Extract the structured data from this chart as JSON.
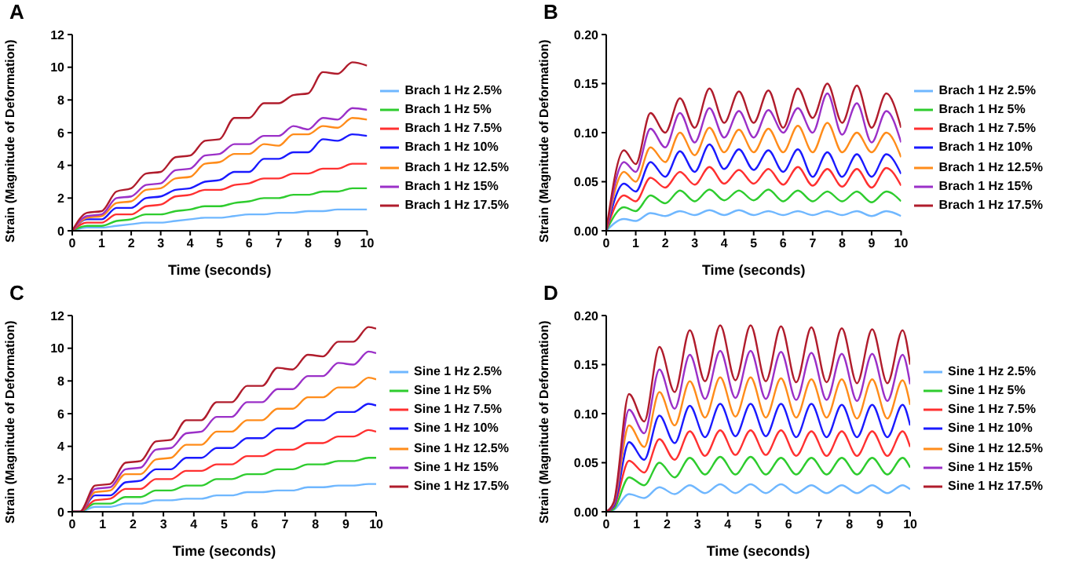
{
  "chart_data": [
    {
      "type": "line",
      "title": "A",
      "xlabel": "Time (seconds)",
      "ylabel": "Strain (Magnitude of Deformation)",
      "legend": "right",
      "grid": false,
      "xlim": [
        0,
        10
      ],
      "xticks": [
        0,
        1,
        2,
        3,
        4,
        5,
        6,
        7,
        8,
        9,
        10
      ],
      "ylim": [
        0,
        12
      ],
      "yticks": [
        0,
        2,
        4,
        6,
        8,
        10,
        12
      ],
      "x": [
        0,
        0.5,
        1,
        1.5,
        2,
        2.5,
        3,
        3.5,
        4,
        4.5,
        5,
        5.5,
        6,
        6.5,
        7,
        7.5,
        8,
        8.5,
        9,
        9.5,
        10
      ],
      "series": [
        {
          "name": "Brach 1 Hz 2.5%",
          "color": "#6fb7ff",
          "values": [
            0,
            0.2,
            0.2,
            0.3,
            0.4,
            0.5,
            0.5,
            0.6,
            0.7,
            0.8,
            0.8,
            0.9,
            1.0,
            1.0,
            1.1,
            1.1,
            1.2,
            1.2,
            1.3,
            1.3,
            1.3
          ]
        },
        {
          "name": "Brach 1 Hz 5%",
          "color": "#2ecc2e",
          "values": [
            0,
            0.3,
            0.3,
            0.6,
            0.7,
            1.0,
            1.0,
            1.2,
            1.3,
            1.5,
            1.5,
            1.7,
            1.8,
            2.0,
            2.0,
            2.2,
            2.2,
            2.4,
            2.4,
            2.6,
            2.6
          ]
        },
        {
          "name": "Brach 1 Hz 7.5%",
          "color": "#ff3030",
          "values": [
            0,
            0.5,
            0.5,
            1.0,
            1.0,
            1.5,
            1.6,
            2.1,
            2.2,
            2.5,
            2.5,
            2.8,
            2.9,
            3.2,
            3.2,
            3.5,
            3.5,
            3.8,
            3.8,
            4.1,
            4.1
          ]
        },
        {
          "name": "Brach 1 Hz 10%",
          "color": "#1a1aff",
          "values": [
            0,
            0.7,
            0.7,
            1.4,
            1.4,
            2.0,
            2.1,
            2.5,
            2.6,
            3.0,
            3.1,
            3.6,
            3.6,
            4.4,
            4.4,
            4.8,
            4.8,
            5.6,
            5.5,
            5.9,
            5.8
          ]
        },
        {
          "name": "Brach 1 Hz 12.5%",
          "color": "#ff8c1a",
          "values": [
            0,
            0.8,
            0.9,
            1.7,
            1.8,
            2.5,
            2.6,
            3.2,
            3.3,
            4.1,
            4.2,
            4.7,
            4.7,
            5.3,
            5.2,
            5.9,
            5.9,
            6.4,
            6.3,
            6.9,
            6.8
          ]
        },
        {
          "name": "Brach 1 Hz 15%",
          "color": "#9b30c8",
          "values": [
            0,
            0.9,
            1.0,
            2.0,
            2.1,
            2.8,
            2.9,
            3.7,
            3.8,
            4.6,
            4.7,
            5.3,
            5.3,
            5.8,
            5.8,
            6.4,
            6.2,
            6.9,
            6.8,
            7.5,
            7.4
          ]
        },
        {
          "name": "Brach 1 Hz 17.5%",
          "color": "#b01c2c",
          "values": [
            0,
            1.1,
            1.2,
            2.4,
            2.6,
            3.5,
            3.6,
            4.5,
            4.6,
            5.5,
            5.6,
            6.9,
            6.9,
            7.8,
            7.8,
            8.3,
            8.4,
            9.7,
            9.6,
            10.3,
            10.1
          ]
        }
      ]
    },
    {
      "type": "line",
      "title": "B",
      "xlabel": "Time (seconds)",
      "ylabel": "Strain (Magnitude of Deformation)",
      "legend": "right",
      "grid": false,
      "xlim": [
        0,
        10
      ],
      "xticks": [
        0,
        1,
        2,
        3,
        4,
        5,
        6,
        7,
        8,
        9,
        10
      ],
      "ylim": [
        0,
        0.2
      ],
      "yticks": [
        {
          "value": 0,
          "label": "0.00"
        },
        {
          "value": 0.05,
          "label": "0.05"
        },
        {
          "value": 0.1,
          "label": "0.10"
        },
        {
          "value": 0.15,
          "label": "0.15"
        },
        {
          "value": 0.2,
          "label": "0.20"
        }
      ],
      "x": [
        0,
        0.6,
        1,
        1.5,
        2,
        2.5,
        3,
        3.5,
        4,
        4.5,
        5,
        5.5,
        6,
        6.5,
        7,
        7.5,
        8,
        8.5,
        9,
        9.5,
        10
      ],
      "series": [
        {
          "name": "Brach 1 Hz 2.5%",
          "color": "#6fb7ff",
          "values": [
            0,
            0.012,
            0.01,
            0.018,
            0.015,
            0.02,
            0.016,
            0.021,
            0.016,
            0.021,
            0.016,
            0.02,
            0.016,
            0.02,
            0.016,
            0.02,
            0.016,
            0.02,
            0.015,
            0.02,
            0.015
          ]
        },
        {
          "name": "Brach 1 Hz 5%",
          "color": "#2ecc2e",
          "values": [
            0,
            0.024,
            0.02,
            0.036,
            0.028,
            0.041,
            0.03,
            0.042,
            0.031,
            0.041,
            0.031,
            0.042,
            0.03,
            0.041,
            0.03,
            0.04,
            0.03,
            0.04,
            0.029,
            0.04,
            0.03
          ]
        },
        {
          "name": "Brach 1 Hz 7.5%",
          "color": "#ff3030",
          "values": [
            0,
            0.036,
            0.03,
            0.054,
            0.044,
            0.06,
            0.047,
            0.065,
            0.048,
            0.062,
            0.048,
            0.063,
            0.047,
            0.065,
            0.046,
            0.063,
            0.045,
            0.063,
            0.044,
            0.064,
            0.046
          ]
        },
        {
          "name": "Brach 1 Hz 10%",
          "color": "#1a1aff",
          "values": [
            0,
            0.048,
            0.04,
            0.07,
            0.055,
            0.081,
            0.06,
            0.088,
            0.063,
            0.083,
            0.062,
            0.082,
            0.06,
            0.083,
            0.055,
            0.08,
            0.055,
            0.078,
            0.055,
            0.078,
            0.058
          ]
        },
        {
          "name": "Brach 1 Hz 12.5%",
          "color": "#ff8c1a",
          "values": [
            0,
            0.06,
            0.05,
            0.085,
            0.07,
            0.1,
            0.077,
            0.105,
            0.08,
            0.103,
            0.08,
            0.104,
            0.08,
            0.107,
            0.08,
            0.11,
            0.08,
            0.1,
            0.08,
            0.1,
            0.075
          ]
        },
        {
          "name": "Brach 1 Hz 15%",
          "color": "#9b30c8",
          "values": [
            0,
            0.07,
            0.06,
            0.104,
            0.085,
            0.12,
            0.09,
            0.125,
            0.095,
            0.122,
            0.095,
            0.123,
            0.1,
            0.125,
            0.1,
            0.14,
            0.098,
            0.13,
            0.09,
            0.122,
            0.09
          ]
        },
        {
          "name": "Brach 1 Hz 17.5%",
          "color": "#b01c2c",
          "values": [
            0,
            0.082,
            0.068,
            0.12,
            0.1,
            0.135,
            0.105,
            0.145,
            0.11,
            0.142,
            0.11,
            0.143,
            0.105,
            0.145,
            0.115,
            0.15,
            0.11,
            0.148,
            0.105,
            0.14,
            0.105
          ]
        }
      ]
    },
    {
      "type": "line",
      "title": "C",
      "xlabel": "Time (seconds)",
      "ylabel": "Strain (Magnitude of Deformation)",
      "legend": "right",
      "grid": false,
      "xlim": [
        0,
        10
      ],
      "xticks": [
        0,
        1,
        2,
        3,
        4,
        5,
        6,
        7,
        8,
        9,
        10
      ],
      "ylim": [
        0,
        12
      ],
      "yticks": [
        0,
        2,
        4,
        6,
        8,
        10,
        12
      ],
      "x": [
        0,
        0.25,
        0.75,
        1.25,
        1.75,
        2.25,
        2.75,
        3.25,
        3.75,
        4.25,
        4.75,
        5.25,
        5.75,
        6.25,
        6.75,
        7.25,
        7.75,
        8.25,
        8.75,
        9.25,
        9.75,
        10
      ],
      "series": [
        {
          "name": "Sine 1 Hz 2.5%",
          "color": "#6fb7ff",
          "values": [
            0,
            0,
            0.3,
            0.3,
            0.5,
            0.5,
            0.7,
            0.7,
            0.8,
            0.8,
            1.0,
            1.0,
            1.2,
            1.2,
            1.3,
            1.3,
            1.5,
            1.5,
            1.6,
            1.6,
            1.7,
            1.7
          ]
        },
        {
          "name": "Sine 1 Hz 5%",
          "color": "#2ecc2e",
          "values": [
            0,
            0,
            0.5,
            0.5,
            0.9,
            0.9,
            1.3,
            1.3,
            1.6,
            1.6,
            2.0,
            2.0,
            2.3,
            2.3,
            2.6,
            2.6,
            2.9,
            2.9,
            3.1,
            3.1,
            3.3,
            3.3
          ]
        },
        {
          "name": "Sine 1 Hz 7.5%",
          "color": "#ff3030",
          "values": [
            0,
            0,
            0.7,
            0.8,
            1.4,
            1.4,
            2.0,
            2.0,
            2.5,
            2.5,
            2.9,
            2.9,
            3.4,
            3.4,
            3.8,
            3.8,
            4.2,
            4.2,
            4.6,
            4.6,
            5.0,
            4.9
          ]
        },
        {
          "name": "Sine 1 Hz 10%",
          "color": "#1a1aff",
          "values": [
            0,
            0,
            1.0,
            1.0,
            1.8,
            1.9,
            2.6,
            2.6,
            3.3,
            3.3,
            3.9,
            3.9,
            4.5,
            4.5,
            5.1,
            5.1,
            5.6,
            5.6,
            6.1,
            6.1,
            6.6,
            6.5
          ]
        },
        {
          "name": "Sine 1 Hz 12.5%",
          "color": "#ff8c1a",
          "values": [
            0,
            0,
            1.2,
            1.3,
            2.3,
            2.3,
            3.2,
            3.3,
            4.1,
            4.1,
            4.9,
            4.9,
            5.6,
            5.6,
            6.3,
            6.3,
            7.0,
            7.0,
            7.6,
            7.6,
            8.2,
            8.1
          ]
        },
        {
          "name": "Sine 1 Hz 15%",
          "color": "#9b30c8",
          "values": [
            0,
            0,
            1.4,
            1.5,
            2.6,
            2.7,
            3.8,
            3.9,
            4.8,
            4.9,
            5.8,
            5.8,
            6.7,
            6.7,
            7.5,
            7.5,
            8.3,
            8.3,
            9.1,
            9.0,
            9.8,
            9.7
          ]
        },
        {
          "name": "Sine 1 Hz 17.5%",
          "color": "#b01c2c",
          "values": [
            0,
            0,
            1.6,
            1.7,
            3.0,
            3.1,
            4.3,
            4.4,
            5.6,
            5.6,
            6.7,
            6.7,
            7.7,
            7.7,
            8.8,
            8.7,
            9.6,
            9.5,
            10.4,
            10.4,
            11.3,
            11.2
          ]
        }
      ]
    },
    {
      "type": "line",
      "title": "D",
      "xlabel": "Time (seconds)",
      "ylabel": "Strain (Magnitude of Deformation)",
      "legend": "right",
      "grid": false,
      "xlim": [
        0,
        10
      ],
      "xticks": [
        0,
        1,
        2,
        3,
        4,
        5,
        6,
        7,
        8,
        9,
        10
      ],
      "ylim": [
        0,
        0.2
      ],
      "yticks": [
        {
          "value": 0,
          "label": "0.00"
        },
        {
          "value": 0.05,
          "label": "0.05"
        },
        {
          "value": 0.1,
          "label": "0.10"
        },
        {
          "value": 0.15,
          "label": "0.15"
        },
        {
          "value": 0.2,
          "label": "0.20"
        }
      ],
      "x": [
        0,
        0.25,
        0.75,
        1.25,
        1.75,
        2.25,
        2.75,
        3.25,
        3.75,
        4.25,
        4.75,
        5.25,
        5.75,
        6.25,
        6.75,
        7.25,
        7.75,
        8.25,
        8.75,
        9.25,
        9.75,
        10
      ],
      "series": [
        {
          "name": "Sine 1 Hz 2.5%",
          "color": "#6fb7ff",
          "values": [
            0,
            0.002,
            0.018,
            0.014,
            0.025,
            0.018,
            0.027,
            0.019,
            0.028,
            0.019,
            0.028,
            0.019,
            0.028,
            0.019,
            0.027,
            0.019,
            0.027,
            0.019,
            0.027,
            0.019,
            0.027,
            0.023
          ]
        },
        {
          "name": "Sine 1 Hz 5%",
          "color": "#2ecc2e",
          "values": [
            0,
            0.003,
            0.035,
            0.027,
            0.05,
            0.035,
            0.055,
            0.038,
            0.056,
            0.038,
            0.056,
            0.038,
            0.055,
            0.038,
            0.055,
            0.038,
            0.055,
            0.038,
            0.055,
            0.038,
            0.055,
            0.045
          ]
        },
        {
          "name": "Sine 1 Hz 7.5%",
          "color": "#ff3030",
          "values": [
            0,
            0.005,
            0.052,
            0.04,
            0.074,
            0.053,
            0.082,
            0.057,
            0.083,
            0.058,
            0.083,
            0.058,
            0.083,
            0.057,
            0.082,
            0.057,
            0.082,
            0.057,
            0.082,
            0.057,
            0.082,
            0.066
          ]
        },
        {
          "name": "Sine 1 Hz 10%",
          "color": "#1a1aff",
          "values": [
            0,
            0.006,
            0.071,
            0.053,
            0.098,
            0.07,
            0.108,
            0.076,
            0.11,
            0.077,
            0.11,
            0.077,
            0.11,
            0.076,
            0.11,
            0.076,
            0.109,
            0.076,
            0.109,
            0.076,
            0.109,
            0.088
          ]
        },
        {
          "name": "Sine 1 Hz 12.5%",
          "color": "#ff8c1a",
          "values": [
            0,
            0.008,
            0.088,
            0.066,
            0.122,
            0.088,
            0.133,
            0.096,
            0.137,
            0.097,
            0.137,
            0.096,
            0.136,
            0.096,
            0.135,
            0.096,
            0.135,
            0.095,
            0.135,
            0.095,
            0.134,
            0.109
          ]
        },
        {
          "name": "Sine 1 Hz 15%",
          "color": "#9b30c8",
          "values": [
            0,
            0.009,
            0.104,
            0.08,
            0.145,
            0.105,
            0.16,
            0.115,
            0.164,
            0.116,
            0.164,
            0.115,
            0.163,
            0.114,
            0.162,
            0.114,
            0.161,
            0.113,
            0.161,
            0.113,
            0.16,
            0.13
          ]
        },
        {
          "name": "Sine 1 Hz 17.5%",
          "color": "#b01c2c",
          "values": [
            0,
            0.01,
            0.12,
            0.092,
            0.168,
            0.122,
            0.185,
            0.133,
            0.19,
            0.134,
            0.19,
            0.133,
            0.189,
            0.132,
            0.188,
            0.132,
            0.187,
            0.131,
            0.186,
            0.131,
            0.185,
            0.15
          ]
        }
      ]
    }
  ]
}
